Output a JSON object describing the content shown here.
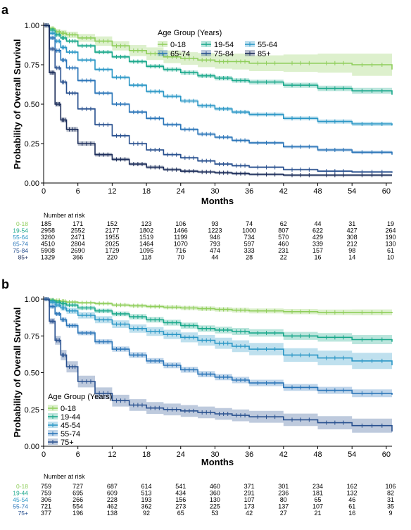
{
  "chart_data": [
    {
      "panel_label": "a",
      "type": "line",
      "subtype": "kaplan-meier survival curve with confidence bands",
      "xlabel": "Months",
      "ylabel": "Probability of Overall Survival",
      "xlim": [
        0,
        61
      ],
      "ylim": [
        0,
        1
      ],
      "xticks": [
        "0",
        "6",
        "12",
        "18",
        "24",
        "30",
        "36",
        "42",
        "48",
        "54",
        "60"
      ],
      "yticks": [
        "0.00",
        "0.25",
        "0.50",
        "0.75",
        "1.00"
      ],
      "legend": {
        "title": "Age Group (Years)",
        "placement": "top-right",
        "columns": 3
      },
      "x": [
        0,
        1,
        2,
        3,
        4,
        6,
        9,
        12,
        15,
        18,
        21,
        24,
        27,
        30,
        33,
        36,
        42,
        48,
        54,
        61
      ],
      "series": [
        {
          "name": "0-18",
          "color": "#8fce5b",
          "values": [
            1.0,
            0.98,
            0.96,
            0.95,
            0.94,
            0.92,
            0.9,
            0.87,
            0.84,
            0.82,
            0.8,
            0.79,
            0.78,
            0.77,
            0.77,
            0.76,
            0.76,
            0.76,
            0.75,
            0.72
          ],
          "ci_halfwidth": [
            0.0,
            0.01,
            0.015,
            0.02,
            0.02,
            0.025,
            0.03,
            0.03,
            0.035,
            0.04,
            0.04,
            0.04,
            0.045,
            0.045,
            0.05,
            0.05,
            0.055,
            0.06,
            0.07,
            0.09
          ]
        },
        {
          "name": "19-54",
          "color": "#1aa88b",
          "values": [
            1.0,
            0.97,
            0.94,
            0.92,
            0.9,
            0.87,
            0.83,
            0.8,
            0.77,
            0.74,
            0.72,
            0.7,
            0.68,
            0.665,
            0.65,
            0.64,
            0.62,
            0.6,
            0.585,
            0.56
          ],
          "ci_halfwidth": [
            0.0,
            0.005,
            0.006,
            0.007,
            0.008,
            0.009,
            0.01,
            0.01,
            0.011,
            0.012,
            0.012,
            0.013,
            0.013,
            0.014,
            0.014,
            0.015,
            0.016,
            0.017,
            0.019,
            0.02
          ]
        },
        {
          "name": "55-64",
          "color": "#2b97c6",
          "values": [
            1.0,
            0.95,
            0.9,
            0.86,
            0.83,
            0.78,
            0.72,
            0.67,
            0.62,
            0.58,
            0.55,
            0.52,
            0.49,
            0.47,
            0.45,
            0.435,
            0.41,
            0.39,
            0.375,
            0.365
          ],
          "ci_halfwidth": [
            0.0,
            0.005,
            0.006,
            0.007,
            0.007,
            0.008,
            0.008,
            0.009,
            0.009,
            0.01,
            0.01,
            0.01,
            0.011,
            0.011,
            0.011,
            0.012,
            0.012,
            0.013,
            0.013,
            0.014
          ]
        },
        {
          "name": "65-74",
          "color": "#2a75b8",
          "values": [
            1.0,
            0.92,
            0.84,
            0.78,
            0.73,
            0.65,
            0.57,
            0.5,
            0.45,
            0.41,
            0.37,
            0.34,
            0.31,
            0.29,
            0.27,
            0.255,
            0.23,
            0.21,
            0.195,
            0.18
          ],
          "ci_halfwidth": [
            0.0,
            0.005,
            0.006,
            0.007,
            0.007,
            0.007,
            0.008,
            0.008,
            0.008,
            0.008,
            0.008,
            0.008,
            0.009,
            0.009,
            0.009,
            0.009,
            0.009,
            0.01,
            0.01,
            0.011
          ]
        },
        {
          "name": "75-84",
          "color": "#28508f",
          "values": [
            1.0,
            0.85,
            0.73,
            0.64,
            0.57,
            0.47,
            0.37,
            0.3,
            0.25,
            0.21,
            0.18,
            0.16,
            0.14,
            0.12,
            0.11,
            0.1,
            0.085,
            0.075,
            0.07,
            0.065
          ],
          "ci_halfwidth": [
            0.0,
            0.005,
            0.006,
            0.006,
            0.006,
            0.006,
            0.006,
            0.006,
            0.006,
            0.006,
            0.006,
            0.006,
            0.006,
            0.006,
            0.006,
            0.006,
            0.006,
            0.006,
            0.007,
            0.007
          ]
        },
        {
          "name": "85+",
          "color": "#1c2d5a",
          "values": [
            1.0,
            0.7,
            0.5,
            0.4,
            0.34,
            0.25,
            0.18,
            0.15,
            0.12,
            0.1,
            0.085,
            0.075,
            0.07,
            0.065,
            0.06,
            0.055,
            0.05,
            0.05,
            0.05,
            0.05
          ],
          "ci_halfwidth": [
            0.0,
            0.012,
            0.015,
            0.015,
            0.015,
            0.014,
            0.012,
            0.011,
            0.01,
            0.01,
            0.009,
            0.009,
            0.008,
            0.008,
            0.008,
            0.008,
            0.008,
            0.008,
            0.008,
            0.008
          ]
        }
      ],
      "risk_table": {
        "title": "Number at risk",
        "times": [
          0,
          6,
          12,
          18,
          24,
          30,
          36,
          42,
          48,
          54,
          60
        ],
        "rows": [
          {
            "name": "0-18",
            "values": [
              "185",
              "171",
              "152",
              "123",
              "106",
              "93",
              "74",
              "62",
              "44",
              "31",
              "19"
            ]
          },
          {
            "name": "19-54",
            "values": [
              "2958",
              "2552",
              "2177",
              "1802",
              "1466",
              "1223",
              "1000",
              "807",
              "622",
              "427",
              "264"
            ]
          },
          {
            "name": "55-64",
            "values": [
              "3260",
              "2471",
              "1955",
              "1519",
              "1199",
              "946",
              "734",
              "570",
              "429",
              "308",
              "190"
            ]
          },
          {
            "name": "65-74",
            "values": [
              "4510",
              "2804",
              "2025",
              "1464",
              "1070",
              "793",
              "597",
              "460",
              "339",
              "212",
              "130"
            ]
          },
          {
            "name": "75-84",
            "values": [
              "5908",
              "2690",
              "1729",
              "1095",
              "716",
              "474",
              "333",
              "231",
              "157",
              "98",
              "61"
            ]
          },
          {
            "name": "85+",
            "values": [
              "1329",
              "366",
              "220",
              "118",
              "70",
              "44",
              "28",
              "22",
              "16",
              "14",
              "10"
            ]
          }
        ]
      }
    },
    {
      "panel_label": "b",
      "type": "line",
      "subtype": "kaplan-meier survival curve with confidence bands",
      "xlabel": "Months",
      "ylabel": "Probability of Overall Survival",
      "xlim": [
        0,
        61
      ],
      "ylim": [
        0,
        1
      ],
      "xticks": [
        "0",
        "6",
        "12",
        "18",
        "24",
        "30",
        "36",
        "42",
        "48",
        "54",
        "60"
      ],
      "yticks": [
        "0.00",
        "0.25",
        "0.50",
        "0.75",
        "1.00"
      ],
      "legend": {
        "title": "Age Group (Years)",
        "placement": "bottom-left",
        "columns": 1
      },
      "x": [
        0,
        1,
        2,
        3,
        4,
        6,
        9,
        12,
        15,
        18,
        21,
        24,
        27,
        30,
        33,
        36,
        42,
        48,
        54,
        61
      ],
      "series": [
        {
          "name": "0-18",
          "color": "#8fce5b",
          "values": [
            1.0,
            0.995,
            0.99,
            0.985,
            0.98,
            0.975,
            0.97,
            0.96,
            0.955,
            0.95,
            0.945,
            0.94,
            0.935,
            0.93,
            0.925,
            0.92,
            0.915,
            0.91,
            0.91,
            0.905
          ],
          "ci_halfwidth": [
            0.0,
            0.003,
            0.005,
            0.006,
            0.007,
            0.008,
            0.009,
            0.01,
            0.011,
            0.012,
            0.013,
            0.014,
            0.015,
            0.015,
            0.016,
            0.017,
            0.018,
            0.019,
            0.02,
            0.022
          ]
        },
        {
          "name": "19-44",
          "color": "#1aa88b",
          "values": [
            1.0,
            0.99,
            0.98,
            0.97,
            0.96,
            0.94,
            0.92,
            0.9,
            0.88,
            0.86,
            0.84,
            0.82,
            0.8,
            0.79,
            0.78,
            0.77,
            0.75,
            0.74,
            0.725,
            0.71
          ],
          "ci_halfwidth": [
            0.0,
            0.005,
            0.008,
            0.01,
            0.011,
            0.013,
            0.015,
            0.016,
            0.018,
            0.019,
            0.02,
            0.021,
            0.022,
            0.023,
            0.024,
            0.025,
            0.027,
            0.029,
            0.031,
            0.034
          ]
        },
        {
          "name": "45-54",
          "color": "#2b97c6",
          "values": [
            1.0,
            0.98,
            0.96,
            0.94,
            0.92,
            0.89,
            0.86,
            0.83,
            0.8,
            0.78,
            0.76,
            0.74,
            0.72,
            0.7,
            0.68,
            0.66,
            0.62,
            0.6,
            0.58,
            0.55
          ],
          "ci_halfwidth": [
            0.0,
            0.01,
            0.015,
            0.018,
            0.02,
            0.022,
            0.024,
            0.026,
            0.028,
            0.03,
            0.032,
            0.034,
            0.036,
            0.038,
            0.04,
            0.042,
            0.046,
            0.05,
            0.055,
            0.065
          ]
        },
        {
          "name": "55-74",
          "color": "#2a75b8",
          "values": [
            1.0,
            0.95,
            0.9,
            0.86,
            0.82,
            0.77,
            0.71,
            0.66,
            0.62,
            0.58,
            0.55,
            0.52,
            0.49,
            0.47,
            0.45,
            0.43,
            0.4,
            0.38,
            0.36,
            0.35
          ],
          "ci_halfwidth": [
            0.0,
            0.01,
            0.012,
            0.014,
            0.015,
            0.016,
            0.017,
            0.018,
            0.019,
            0.019,
            0.02,
            0.02,
            0.021,
            0.021,
            0.022,
            0.022,
            0.023,
            0.024,
            0.026,
            0.028
          ]
        },
        {
          "name": "75+",
          "color": "#28508f",
          "values": [
            1.0,
            0.85,
            0.72,
            0.62,
            0.54,
            0.44,
            0.36,
            0.31,
            0.28,
            0.26,
            0.25,
            0.24,
            0.23,
            0.22,
            0.21,
            0.2,
            0.18,
            0.16,
            0.14,
            0.1
          ],
          "ci_halfwidth": [
            0.0,
            0.02,
            0.03,
            0.035,
            0.038,
            0.04,
            0.04,
            0.04,
            0.04,
            0.04,
            0.04,
            0.04,
            0.04,
            0.04,
            0.04,
            0.04,
            0.042,
            0.045,
            0.048,
            0.05
          ]
        }
      ],
      "risk_table": {
        "title": "Number at risk",
        "times": [
          0,
          6,
          12,
          18,
          24,
          30,
          36,
          42,
          48,
          54,
          60
        ],
        "rows": [
          {
            "name": "0-18",
            "values": [
              "759",
              "727",
              "687",
              "614",
              "541",
              "460",
              "371",
              "301",
              "234",
              "162",
              "106"
            ]
          },
          {
            "name": "19-44",
            "values": [
              "759",
              "695",
              "609",
              "513",
              "434",
              "360",
              "291",
              "236",
              "181",
              "132",
              "82"
            ]
          },
          {
            "name": "45-54",
            "values": [
              "306",
              "266",
              "228",
              "193",
              "156",
              "130",
              "107",
              "80",
              "65",
              "46",
              "31"
            ]
          },
          {
            "name": "55-74",
            "values": [
              "721",
              "554",
              "462",
              "362",
              "273",
              "225",
              "173",
              "137",
              "107",
              "61",
              "35"
            ]
          },
          {
            "name": "75+",
            "values": [
              "377",
              "196",
              "138",
              "92",
              "65",
              "53",
              "42",
              "27",
              "21",
              "16",
              "9"
            ]
          }
        ]
      }
    }
  ]
}
